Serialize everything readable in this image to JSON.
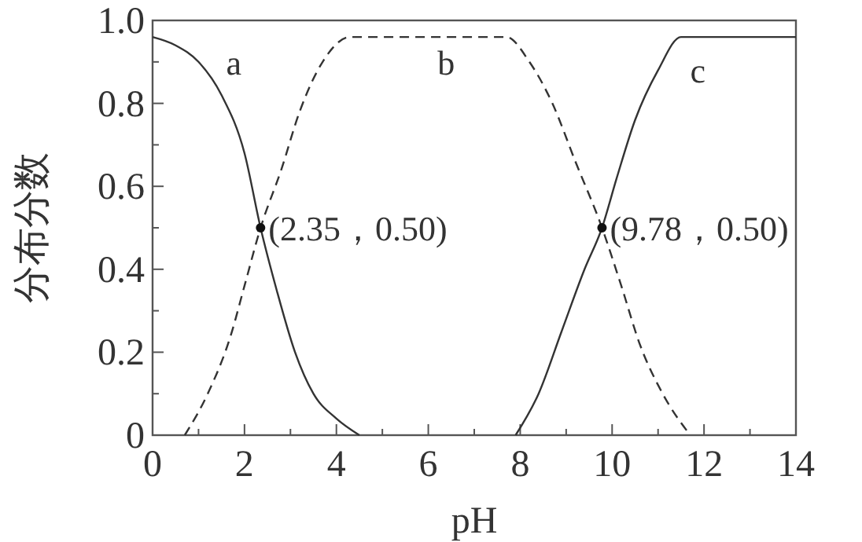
{
  "chart_data": {
    "type": "line",
    "xlabel": "pH",
    "ylabel": "分布分数",
    "xlim": [
      0,
      14
    ],
    "ylim": [
      0,
      1.0
    ],
    "xticks": [
      0,
      {
        "value": 1,
        "label": null
      },
      2,
      {
        "value": 3,
        "label": null
      },
      4,
      {
        "value": 5,
        "label": null
      },
      6,
      {
        "value": 7,
        "label": null
      },
      8,
      {
        "value": 9,
        "label": null
      },
      10,
      {
        "value": 11,
        "label": null
      },
      12,
      {
        "value": 13,
        "label": null
      },
      14
    ],
    "yticks": [
      0,
      {
        "value": 0.1,
        "label": null
      },
      {
        "value": 0.2,
        "label": "0.2"
      },
      {
        "value": 0.3,
        "label": null
      },
      {
        "value": 0.4,
        "label": "0.4"
      },
      {
        "value": 0.5,
        "label": null
      },
      {
        "value": 0.6,
        "label": "0.6"
      },
      {
        "value": 0.7,
        "label": null
      },
      {
        "value": 0.8,
        "label": "0.8"
      },
      {
        "value": 0.9,
        "label": null
      },
      {
        "value": 1.0,
        "label": "1.0"
      }
    ],
    "grid": false,
    "marker": "none",
    "series": [
      {
        "name": "a",
        "color": "#333333",
        "line_style": "solid",
        "x": [
          0,
          0.5,
          1,
          1.5,
          2,
          2.35,
          2.7,
          3.1,
          3.5,
          4,
          4.5
        ],
        "values": [
          0.96,
          0.94,
          0.9,
          0.82,
          0.68,
          0.5,
          0.35,
          0.2,
          0.1,
          0.04,
          0
        ]
      },
      {
        "name": "b",
        "color": "#333333",
        "line_style": "dashed",
        "x": [
          0.7,
          1.2,
          1.7,
          2.0,
          2.35,
          2.8,
          3.2,
          3.7,
          4.3,
          7.7,
          8.2,
          8.7,
          9.2,
          9.78,
          10.2,
          10.6,
          11.1,
          11.7
        ],
        "values": [
          0,
          0.1,
          0.24,
          0.36,
          0.5,
          0.64,
          0.78,
          0.9,
          0.96,
          0.96,
          0.9,
          0.8,
          0.66,
          0.5,
          0.36,
          0.22,
          0.1,
          0
        ]
      },
      {
        "name": "c",
        "color": "#333333",
        "line_style": "solid",
        "x": [
          7.9,
          8.4,
          8.9,
          9.4,
          9.78,
          10.1,
          10.5,
          11,
          11.5,
          14
        ],
        "values": [
          0,
          0.1,
          0.25,
          0.4,
          0.5,
          0.62,
          0.76,
          0.88,
          0.96,
          0.96
        ]
      }
    ],
    "annotations": [
      {
        "text": "(2.35，0.50)",
        "x": 2.35,
        "y": 0.5
      },
      {
        "text": "(9.78，0.50)",
        "x": 9.78,
        "y": 0.5
      }
    ]
  }
}
